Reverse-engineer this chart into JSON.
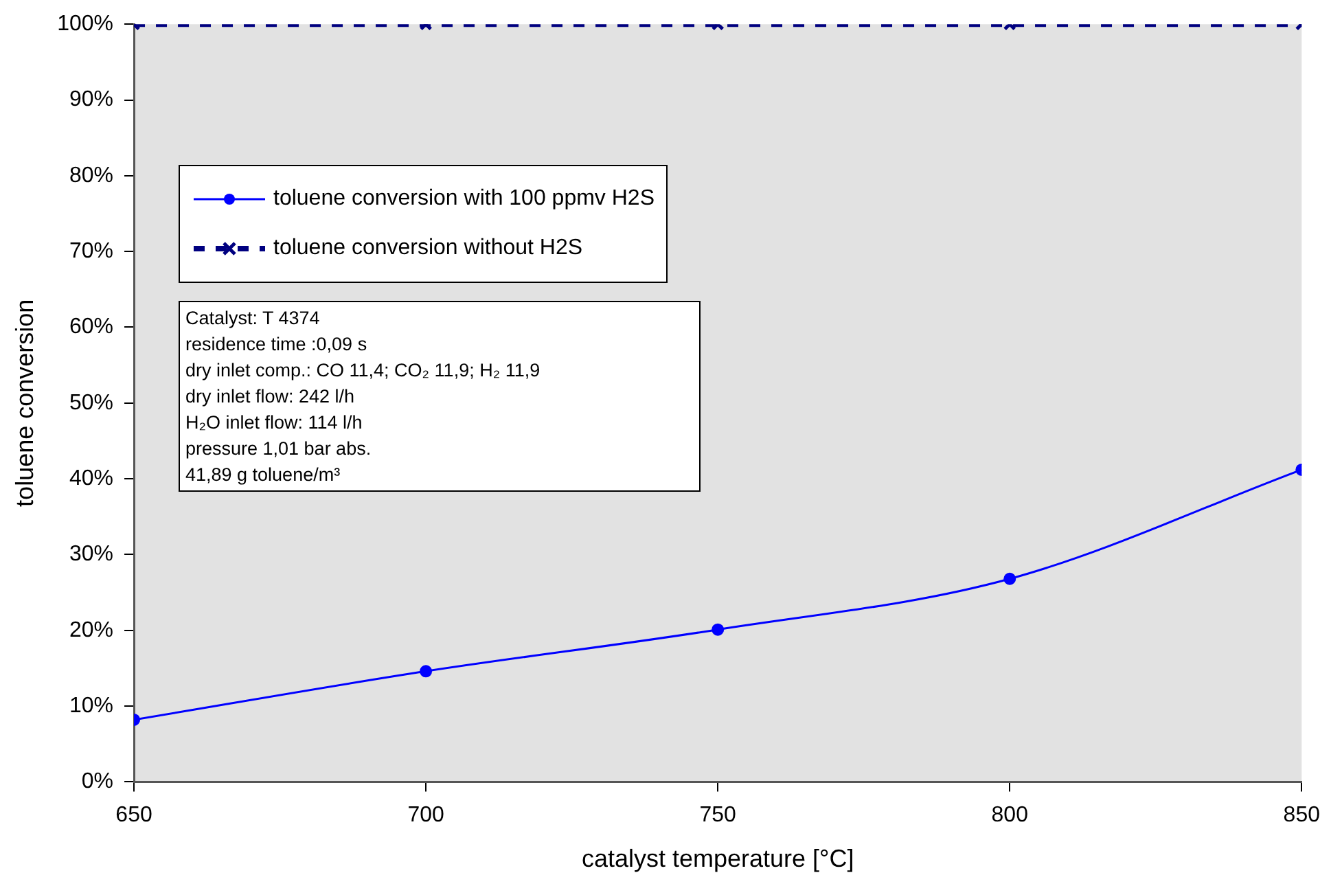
{
  "chart_data": {
    "type": "line",
    "xlabel": "catalyst temperature [°C]",
    "ylabel": "toluene conversion",
    "xlim": [
      650,
      850
    ],
    "xticks": [
      650,
      700,
      750,
      800,
      850
    ],
    "ylim": [
      0,
      100
    ],
    "yticks": [
      {
        "value": 0,
        "label": "0%"
      },
      {
        "value": 10,
        "label": "10%"
      },
      {
        "value": 20,
        "label": "20%"
      },
      {
        "value": 30,
        "label": "30%"
      },
      {
        "value": 40,
        "label": "40%"
      },
      {
        "value": 50,
        "label": "50%"
      },
      {
        "value": 60,
        "label": "60%"
      },
      {
        "value": 70,
        "label": "70%"
      },
      {
        "value": 80,
        "label": "80%"
      },
      {
        "value": 90,
        "label": "90%"
      },
      {
        "value": 100,
        "label": "100%"
      }
    ],
    "x": [
      650,
      700,
      750,
      800,
      850
    ],
    "series": [
      {
        "name": "toluene conversion with 100 ppmv H2S",
        "color": "#0000ff",
        "values": [
          8.2,
          14.6,
          20.1,
          26.8,
          41.2
        ],
        "marker": "circle",
        "line_style": "solid"
      },
      {
        "name": "toluene conversion without H2S",
        "color": "#000080",
        "values": [
          100,
          100,
          100,
          100,
          100
        ],
        "marker": "cross",
        "line_style": "dashed"
      }
    ],
    "annotations": [
      "Catalyst: T 4374",
      "residence time :0,09 s",
      "dry inlet comp.: CO 11,4; CO₂ 11,9; H₂ 11,9",
      "dry inlet flow: 242 l/h",
      "H₂O inlet flow: 114 l/h",
      "pressure 1,01 bar abs.",
      "41,89 g toluene/m³"
    ],
    "grid": false,
    "legend": "top left"
  }
}
